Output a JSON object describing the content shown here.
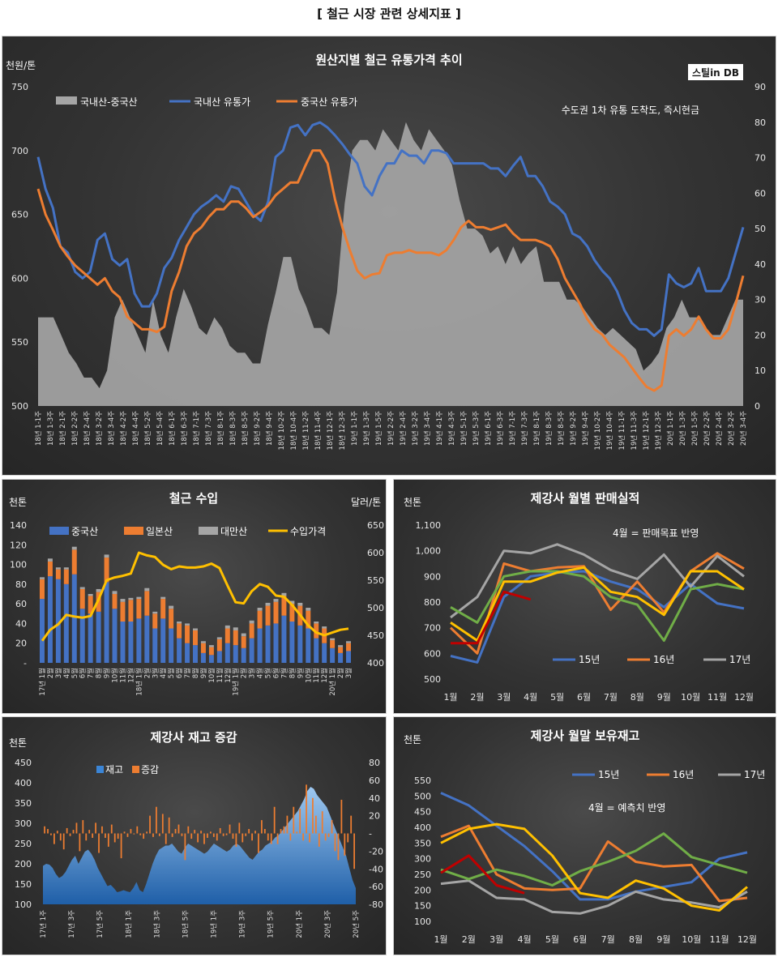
{
  "page_title": "[ 철근 시장 관련 상세지표 ]",
  "colors": {
    "china": "#ed7d31",
    "korea": "#4472c4",
    "taiwan": "#a5a5a5",
    "import_price": "#ffc000",
    "y15": "#4472c4",
    "y16": "#ed7d31",
    "y17": "#a5a5a5",
    "y18_yellow": "#ffc000",
    "y19_red": "#c00000",
    "panel_bg": "#333333"
  },
  "chart_data": [
    {
      "id": "price_trend",
      "type": "line",
      "title": "원산지별 철근 유통가격 추이",
      "logo": "스틸in DB",
      "note": "수도권 1차 유통 도착도, 즉시현금",
      "ylabel": "천원/톤",
      "ylim": [
        500,
        750
      ],
      "yticks": [
        500,
        550,
        600,
        650,
        700,
        750
      ],
      "y2lim": [
        0,
        90
      ],
      "y2ticks": [
        0,
        10,
        20,
        30,
        40,
        50,
        60,
        70,
        80,
        90
      ],
      "x_labels": [
        "18년 1-1주",
        "18년 1-3주",
        "18년 2-1주",
        "18년 2-2주",
        "18년 2-4주",
        "18년 3-2주",
        "18년 3-4주",
        "18년 4-2주",
        "18년 4-4주",
        "18년 5-2주",
        "18년 5-4주",
        "18년 6-1주",
        "18년 6-3주",
        "18년 7-1주",
        "18년 7-3주",
        "18년 8-1주",
        "18년 8-3주",
        "18년 8-5주",
        "18년 9-2주",
        "18년 9-4주",
        "18년 10-2주",
        "18년 10-4주",
        "18년 11-2주",
        "18년 11-4주",
        "18년 12-1주",
        "18년 12-3주",
        "19년 1-1주",
        "19년 1-3주",
        "19년 1-5주",
        "19년 2-2주",
        "19년 2-4주",
        "19년 3-2주",
        "19년 3-4주",
        "19년 4-1주",
        "19년 4-3주",
        "19년 5-1주",
        "19년 5-3주",
        "19년 6-1주",
        "19년 6-3주",
        "19년 7-1주",
        "19년 7-3주",
        "19년 8-1주",
        "19년 8-3주",
        "19년 8-5주",
        "19년 9-2주",
        "19년 9-4주",
        "19년 10-2주",
        "19년 10-4주",
        "19년 11-1주",
        "19년 11-3주",
        "19년 12-1주",
        "19년 12-3주",
        "20년 1-1주",
        "20년 1-3주",
        "20년 1-5주",
        "20년 2-2주",
        "20년 2-4주",
        "20년 3-2주",
        "20년 3-4주"
      ],
      "series": [
        {
          "name": "국내산-중국산",
          "axis": "right",
          "kind": "area",
          "values": [
            25,
            25,
            25,
            20,
            15,
            12,
            8,
            8,
            5,
            10,
            25,
            30,
            25,
            20,
            15,
            30,
            20,
            15,
            25,
            33,
            28,
            22,
            20,
            25,
            22,
            17,
            15,
            15,
            12,
            12,
            23,
            32,
            42,
            42,
            33,
            28,
            22,
            22,
            20,
            32,
            57,
            72,
            75,
            75,
            72,
            78,
            75,
            72,
            80,
            75,
            72,
            78,
            75,
            72,
            68,
            58,
            50,
            50,
            48,
            43,
            45,
            40,
            45,
            40,
            43,
            45,
            35,
            35,
            35,
            30,
            30,
            28,
            25,
            22,
            20,
            22,
            20,
            18,
            16,
            10,
            12,
            15,
            22,
            25,
            30,
            25,
            25,
            22,
            20,
            20,
            25,
            30,
            30
          ]
        },
        {
          "name": "국내산 유통가",
          "axis": "left",
          "kind": "line",
          "values": [
            695,
            670,
            655,
            625,
            620,
            605,
            600,
            605,
            630,
            635,
            615,
            610,
            615,
            588,
            578,
            578,
            588,
            608,
            616,
            630,
            640,
            650,
            656,
            660,
            665,
            660,
            672,
            670,
            660,
            650,
            645,
            660,
            695,
            700,
            718,
            720,
            712,
            720,
            722,
            718,
            712,
            705,
            697,
            690,
            672,
            665,
            680,
            690,
            690,
            700,
            696,
            696,
            690,
            700,
            700,
            698,
            690,
            690,
            690,
            690,
            690,
            686,
            686,
            680,
            688,
            695,
            680,
            680,
            672,
            660,
            656,
            650,
            635,
            632,
            625,
            614,
            606,
            600,
            590,
            575,
            565,
            560,
            560,
            555,
            560,
            603,
            596,
            593,
            596,
            608,
            590,
            590,
            590,
            600,
            620,
            640
          ]
        },
        {
          "name": "중국산 유통가",
          "axis": "left",
          "kind": "line",
          "values": [
            670,
            650,
            638,
            625,
            617,
            610,
            605,
            600,
            595,
            600,
            590,
            585,
            570,
            565,
            560,
            560,
            558,
            562,
            590,
            605,
            625,
            635,
            640,
            648,
            654,
            654,
            660,
            660,
            655,
            648,
            652,
            657,
            665,
            670,
            675,
            675,
            688,
            700,
            700,
            690,
            662,
            640,
            622,
            606,
            600,
            603,
            604,
            618,
            620,
            620,
            622,
            620,
            620,
            620,
            618,
            622,
            630,
            640,
            645,
            640,
            640,
            638,
            640,
            642,
            635,
            630,
            630,
            630,
            628,
            625,
            615,
            600,
            590,
            580,
            568,
            560,
            556,
            548,
            543,
            538,
            530,
            522,
            515,
            512,
            516,
            555,
            560,
            555,
            560,
            570,
            560,
            553,
            553,
            560,
            580,
            602
          ]
        }
      ]
    },
    {
      "id": "rebar_imports",
      "type": "bar",
      "title": "철근 수입",
      "ylabel": "천톤",
      "y2label": "달러/톤",
      "ylim": [
        0,
        140
      ],
      "yticks": [
        "-",
        "20",
        "40",
        "60",
        "80",
        "100",
        "120",
        "140"
      ],
      "y2lim": [
        400,
        650
      ],
      "y2ticks": [
        400,
        450,
        500,
        550,
        600,
        650
      ],
      "x_labels": [
        "17년 1월",
        "2월",
        "3월",
        "4월",
        "5월",
        "6월",
        "7월",
        "8월",
        "9월",
        "10월",
        "11월",
        "12월",
        "18년 1월",
        "2월",
        "3월",
        "4월",
        "5월",
        "6월",
        "7월",
        "8월",
        "9월",
        "10월",
        "11월",
        "12월",
        "19년 1월",
        "2월",
        "3월",
        "4월",
        "5월",
        "6월",
        "7월",
        "8월",
        "9월",
        "10월",
        "11월",
        "12월",
        "20년 1월",
        "2월",
        "3월"
      ],
      "series": [
        {
          "name": "중국산",
          "kind": "stack",
          "values": [
            65,
            88,
            85,
            80,
            90,
            55,
            50,
            52,
            82,
            55,
            42,
            42,
            45,
            48,
            35,
            45,
            35,
            25,
            20,
            18,
            10,
            8,
            12,
            20,
            18,
            15,
            25,
            35,
            38,
            40,
            48,
            42,
            38,
            35,
            25,
            20,
            15,
            10,
            12
          ]
        },
        {
          "name": "일본산",
          "kind": "stack",
          "values": [
            20,
            15,
            10,
            15,
            25,
            20,
            18,
            20,
            25,
            15,
            20,
            22,
            20,
            25,
            15,
            20,
            20,
            15,
            18,
            15,
            10,
            8,
            12,
            15,
            15,
            12,
            15,
            18,
            20,
            22,
            20,
            18,
            20,
            18,
            15,
            15,
            8,
            6,
            8
          ]
        },
        {
          "name": "대만산",
          "kind": "stack",
          "values": [
            2,
            3,
            2,
            2,
            3,
            2,
            2,
            3,
            3,
            3,
            3,
            2,
            2,
            3,
            2,
            2,
            3,
            2,
            2,
            2,
            2,
            2,
            2,
            3,
            3,
            3,
            3,
            3,
            3,
            3,
            3,
            3,
            3,
            3,
            2,
            2,
            2,
            2,
            2
          ]
        },
        {
          "name": "수입가격",
          "kind": "line",
          "axis": "right",
          "values": [
            440,
            460,
            470,
            487,
            484,
            482,
            485,
            515,
            550,
            555,
            558,
            562,
            600,
            595,
            592,
            578,
            570,
            575,
            573,
            573,
            575,
            580,
            572,
            540,
            510,
            508,
            530,
            543,
            538,
            522,
            520,
            505,
            487,
            468,
            455,
            450,
            455,
            460,
            462
          ]
        }
      ]
    },
    {
      "id": "monthly_sales",
      "type": "line",
      "title": "제강사 월별 판매실적",
      "ylabel": "천톤",
      "note": "4월 = 판매목표 반영",
      "ylim": [
        500,
        1100
      ],
      "yticks": [
        "500",
        "600",
        "700",
        "800",
        "900",
        "1,000",
        "1,100"
      ],
      "x_labels": [
        "1월",
        "2월",
        "3월",
        "4월",
        "5월",
        "6월",
        "7월",
        "8월",
        "9월",
        "10월",
        "11월",
        "12월"
      ],
      "series": [
        {
          "name": "15년",
          "values": [
            590,
            565,
            820,
            900,
            915,
            920,
            880,
            850,
            780,
            870,
            795,
            775
          ]
        },
        {
          "name": "16년",
          "values": [
            700,
            600,
            950,
            920,
            935,
            940,
            770,
            880,
            760,
            920,
            990,
            930
          ]
        },
        {
          "name": "17년",
          "values": [
            740,
            820,
            1000,
            990,
            1025,
            985,
            925,
            890,
            985,
            860,
            980,
            900
          ]
        },
        {
          "name": "",
          "legend": false,
          "values": [
            780,
            720,
            900,
            920,
            920,
            900,
            820,
            790,
            650,
            850,
            870,
            850
          ]
        },
        {
          "name": "",
          "legend": false,
          "values": [
            720,
            650,
            880,
            880,
            915,
            935,
            840,
            820,
            750,
            920,
            920,
            850
          ]
        },
        {
          "name": "",
          "legend": false,
          "values": [
            640,
            640,
            840,
            810
          ]
        }
      ]
    },
    {
      "id": "inventory_change",
      "type": "bar",
      "title": "제강사 재고 증감",
      "ylabel": "천톤",
      "ylim": [
        100,
        450
      ],
      "yticks": [
        100,
        150,
        200,
        250,
        300,
        350,
        400,
        450
      ],
      "y2lim": [
        -80,
        80
      ],
      "y2ticks": [
        -80,
        -60,
        -40,
        -20,
        "-",
        20,
        40,
        60,
        80
      ],
      "x_labels": [
        "17년 1주",
        "17년 3주",
        "17년 5주",
        "18년 1주",
        "18년 3주",
        "18년 5주",
        "19년 1주",
        "19년 3주",
        "19년 5주",
        "20년 1주",
        "20년 3주",
        "20년 5주"
      ],
      "series": [
        {
          "name": "재고",
          "kind": "area",
          "values": [
            195,
            200,
            198,
            190,
            175,
            165,
            170,
            180,
            195,
            210,
            220,
            200,
            215,
            230,
            235,
            225,
            210,
            190,
            175,
            160,
            145,
            148,
            140,
            130,
            132,
            135,
            132,
            130,
            140,
            155,
            135,
            130,
            150,
            175,
            200,
            220,
            235,
            240,
            245,
            245,
            250,
            240,
            230,
            225,
            240,
            250,
            245,
            240,
            235,
            230,
            225,
            230,
            240,
            250,
            245,
            240,
            235,
            230,
            235,
            245,
            250,
            245,
            235,
            225,
            215,
            210,
            220,
            230,
            235,
            245,
            250,
            255,
            265,
            270,
            280,
            290,
            300,
            310,
            320,
            330,
            345,
            360,
            380,
            390,
            385,
            370,
            360,
            350,
            340,
            320,
            300,
            280,
            260,
            240,
            220,
            190,
            160,
            140
          ]
        },
        {
          "name": "증감",
          "kind": "bar",
          "axis": "right",
          "values": [
            8,
            5,
            -2,
            -12,
            3,
            -8,
            -18,
            6,
            -3,
            4,
            12,
            -20,
            15,
            -8,
            4,
            -5,
            12,
            -22,
            8,
            -5,
            -15,
            10,
            -10,
            -6,
            -28,
            2,
            -4,
            5,
            -1,
            8,
            -2,
            -6,
            2,
            20,
            -4,
            30,
            -3,
            22,
            -12,
            18,
            -4,
            5,
            10,
            -3,
            -30,
            8,
            -6,
            4,
            -10,
            3,
            -12,
            -5,
            2,
            -4,
            -8,
            6,
            -3,
            -2,
            10,
            -6,
            -15,
            12,
            -10,
            -3,
            5,
            -8,
            3,
            -22,
            15,
            5,
            -8,
            -12,
            30,
            -12,
            5,
            8,
            20,
            -8,
            30,
            2,
            28,
            -8,
            55,
            -10,
            40,
            20,
            -15,
            25,
            -8,
            -4,
            15,
            -20,
            -30,
            38,
            -25,
            -10,
            20,
            -40
          ]
        }
      ]
    },
    {
      "id": "month_end_inventory",
      "type": "line",
      "title": "제강사 월말 보유재고",
      "ylabel": "천톤",
      "note": "4월 = 예측치 반영",
      "ylim": [
        100,
        550
      ],
      "yticks": [
        100,
        150,
        200,
        250,
        300,
        350,
        400,
        450,
        500,
        550
      ],
      "x_labels": [
        "1월",
        "2월",
        "3월",
        "4월",
        "5월",
        "6월",
        "7월",
        "8월",
        "9월",
        "10월",
        "11월",
        "12월"
      ],
      "series": [
        {
          "name": "15년",
          "values": [
            510,
            470,
            405,
            340,
            260,
            170,
            170,
            195,
            210,
            225,
            300,
            320
          ]
        },
        {
          "name": "16년",
          "values": [
            370,
            405,
            250,
            205,
            200,
            205,
            355,
            290,
            275,
            280,
            165,
            175
          ]
        },
        {
          "name": "17년",
          "values": [
            220,
            230,
            175,
            170,
            130,
            125,
            150,
            195,
            170,
            160,
            145,
            195
          ]
        },
        {
          "name": "",
          "legend": false,
          "values": [
            265,
            235,
            265,
            245,
            215,
            260,
            290,
            325,
            380,
            305,
            280,
            255
          ]
        },
        {
          "name": "",
          "legend": false,
          "values": [
            350,
            395,
            410,
            395,
            310,
            190,
            175,
            230,
            205,
            150,
            135,
            210
          ]
        },
        {
          "name": "",
          "legend": false,
          "values": [
            255,
            310,
            215,
            190
          ]
        }
      ]
    }
  ]
}
